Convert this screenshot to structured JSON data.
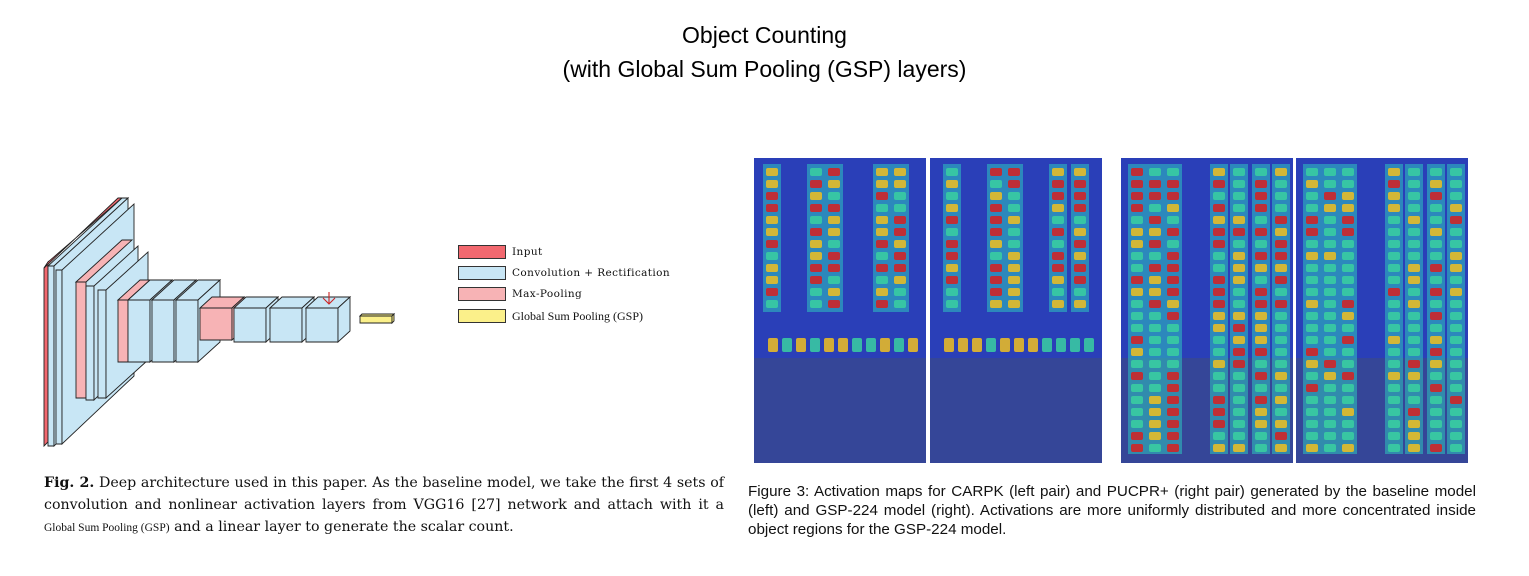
{
  "slide": {
    "title_line1": "Object Counting",
    "title_line2": "(with Global Sum Pooling (GSP) layers)"
  },
  "legend": {
    "items": [
      {
        "label": "Input",
        "color": "#f2686f"
      },
      {
        "label": "Convolution + Rectification",
        "color": "#c8e6f5"
      },
      {
        "label": "Max-Pooling",
        "color": "#f7b3b5"
      },
      {
        "label": "Global Sum Pooling (GSP)",
        "color": "#fbf08a"
      }
    ]
  },
  "fig2": {
    "label": "Fig. 2.",
    "text_before": " Deep architecture used in this paper. As the baseline model, we take the first 4 sets of convolution and nonlinear activation layers from VGG16 [27] network and attach with it a ",
    "inline_term": "Global Sum Pooling (GSP)",
    "text_after": "  and a linear layer to generate the scalar count."
  },
  "fig3": {
    "caption": "Figure 3: Activation maps for CARPK (left pair) and PUCPR+ (right pair) generated by the baseline model (left) and GSP-224 model (right).  Activations are more uniformly distributed and more concentrated inside object regions for the GSP-224 model."
  },
  "colors": {
    "input": "#f2686f",
    "conv": "#c8e6f5",
    "pool": "#f7b3b5",
    "gsp": "#fbf08a",
    "heatmap_bg": "#2a3fb8"
  }
}
